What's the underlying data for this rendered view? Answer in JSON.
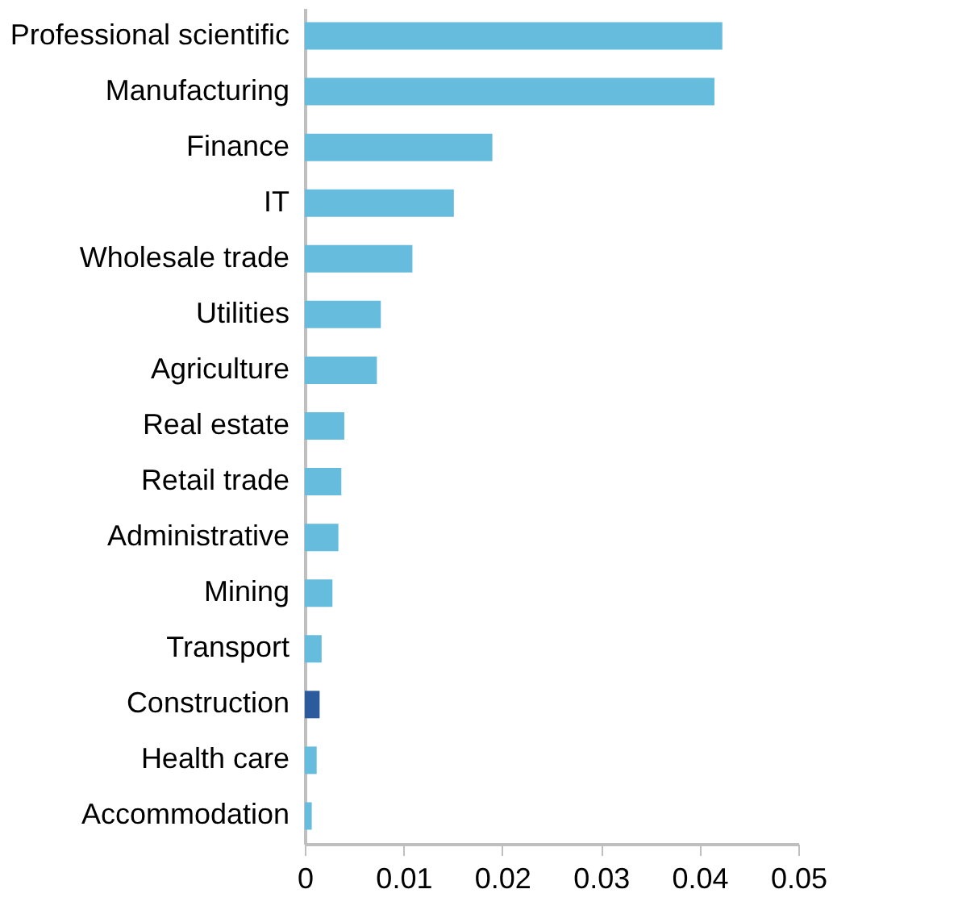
{
  "chart_data": {
    "type": "bar",
    "orientation": "horizontal",
    "categories": [
      "Professional scientific",
      "Manufacturing",
      "Finance",
      "IT",
      "Wholesale trade",
      "Utilities",
      "Agriculture",
      "Real estate",
      "Retail trade",
      "Administrative",
      "Mining",
      "Transport",
      "Construction",
      "Health care",
      "Accommodation"
    ],
    "values": [
      0.0423,
      0.0415,
      0.019,
      0.0151,
      0.0109,
      0.0077,
      0.0073,
      0.004,
      0.0037,
      0.0034,
      0.0028,
      0.0017,
      0.0015,
      0.0012,
      0.0007
    ],
    "colors": [
      "#66bcdc",
      "#66bcdc",
      "#66bcdc",
      "#66bcdc",
      "#66bcdc",
      "#66bcdc",
      "#66bcdc",
      "#66bcdc",
      "#66bcdc",
      "#66bcdc",
      "#66bcdc",
      "#66bcdc",
      "#2b5b9c",
      "#66bcdc",
      "#66bcdc"
    ],
    "xlim": [
      0,
      0.05
    ],
    "xticks": [
      0,
      0.01,
      0.02,
      0.03,
      0.04,
      0.05
    ],
    "grid": false
  }
}
